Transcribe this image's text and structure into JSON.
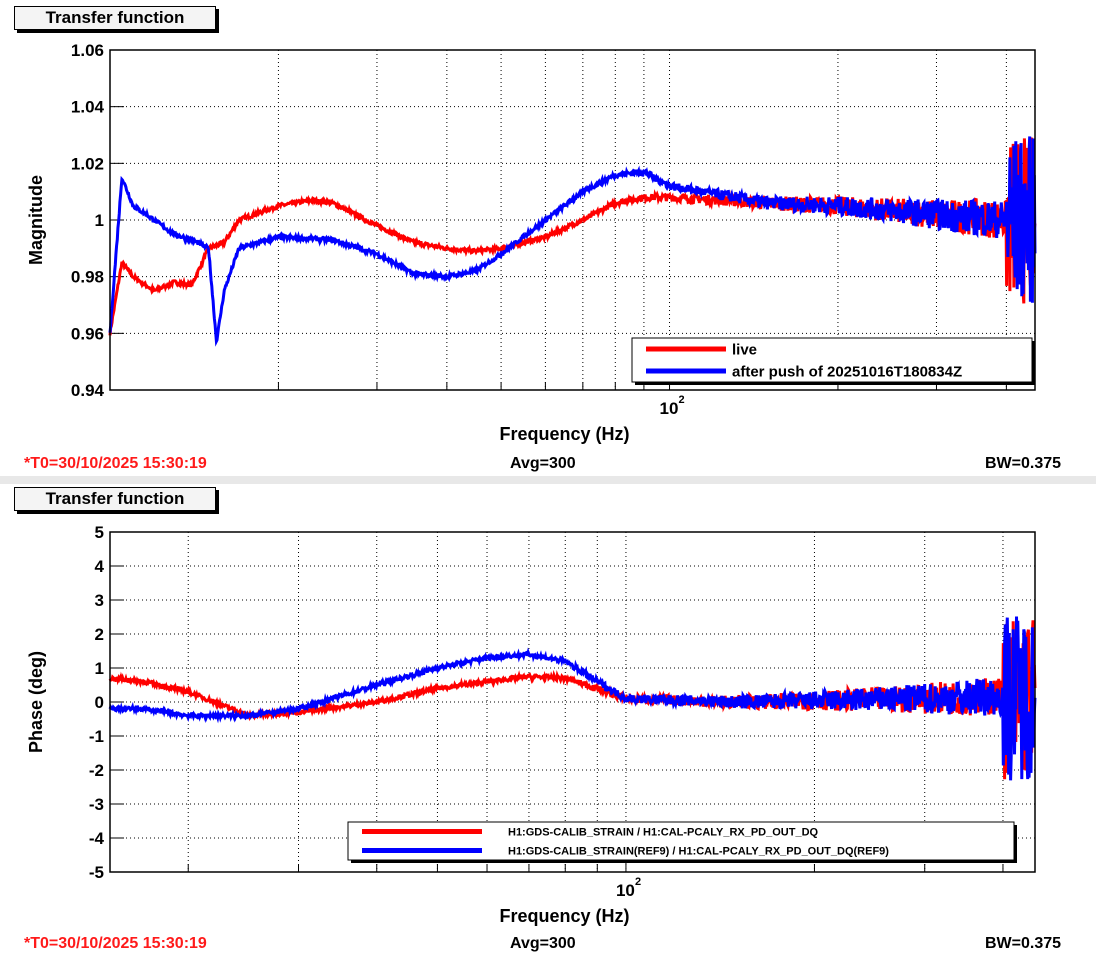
{
  "panels": [
    {
      "title": "Transfer function",
      "t0": "*T0=30/10/2025 15:30:19",
      "avg": "Avg=300",
      "bw": "BW=0.375"
    },
    {
      "title": "Transfer function",
      "t0": "*T0=30/10/2025 15:30:19",
      "avg": "Avg=300",
      "bw": "BW=0.375"
    }
  ],
  "chart_data": [
    {
      "type": "line",
      "title": "Transfer function",
      "xlabel": "Frequency (Hz)",
      "ylabel": "Magnitude",
      "xscale": "log",
      "xlim": [
        10,
        450
      ],
      "ylim": [
        0.94,
        1.06
      ],
      "yticks": [
        "0.94",
        "0.96",
        "0.98",
        "1",
        "1.02",
        "1.04",
        "1.06"
      ],
      "yvals": [
        0.94,
        0.96,
        0.98,
        1,
        1.02,
        1.04,
        1.06
      ],
      "xtick_label": "10",
      "xtick_exp": "2",
      "grid": true,
      "legend": "bottom-right",
      "series": [
        {
          "name": "live",
          "color": "#ff0000",
          "points": [
            [
              10,
              0.96
            ],
            [
              10.5,
              0.985
            ],
            [
              11,
              0.98
            ],
            [
              12,
              0.975
            ],
            [
              13,
              0.978
            ],
            [
              14,
              0.977
            ],
            [
              15,
              0.99
            ],
            [
              16,
              0.992
            ],
            [
              17,
              1.0
            ],
            [
              20,
              1.005
            ],
            [
              23,
              1.007
            ],
            [
              25,
              1.006
            ],
            [
              30,
              0.998
            ],
            [
              35,
              0.992
            ],
            [
              40,
              0.99
            ],
            [
              45,
              0.989
            ],
            [
              50,
              0.99
            ],
            [
              60,
              0.994
            ],
            [
              70,
              1.0
            ],
            [
              80,
              1.006
            ],
            [
              90,
              1.008
            ],
            [
              100,
              1.008
            ],
            [
              150,
              1.006
            ],
            [
              200,
              1.005
            ],
            [
              300,
              1.002
            ],
            [
              400,
              1.0
            ],
            [
              450,
              1.0
            ]
          ]
        },
        {
          "name": "after push of 20251016T180834Z",
          "color": "#0000ff",
          "points": [
            [
              10,
              0.96
            ],
            [
              10.5,
              1.015
            ],
            [
              11,
              1.005
            ],
            [
              12,
              1.0
            ],
            [
              13,
              0.995
            ],
            [
              14,
              0.993
            ],
            [
              15,
              0.99
            ],
            [
              15.5,
              0.957
            ],
            [
              16,
              0.975
            ],
            [
              17,
              0.99
            ],
            [
              20,
              0.994
            ],
            [
              25,
              0.993
            ],
            [
              30,
              0.988
            ],
            [
              35,
              0.981
            ],
            [
              40,
              0.98
            ],
            [
              45,
              0.982
            ],
            [
              50,
              0.988
            ],
            [
              60,
              1.0
            ],
            [
              70,
              1.01
            ],
            [
              80,
              1.016
            ],
            [
              90,
              1.017
            ],
            [
              100,
              1.012
            ],
            [
              150,
              1.006
            ],
            [
              200,
              1.005
            ],
            [
              300,
              1.002
            ],
            [
              400,
              1.0
            ],
            [
              450,
              1.0
            ]
          ]
        }
      ]
    },
    {
      "type": "line",
      "title": "Transfer function",
      "xlabel": "Frequency (Hz)",
      "ylabel": "Phase (deg)",
      "xscale": "log",
      "xlim": [
        15,
        450
      ],
      "ylim": [
        -5,
        5
      ],
      "yticks": [
        "-5",
        "-4",
        "-3",
        "-2",
        "-1",
        "0",
        "1",
        "2",
        "3",
        "4",
        "5"
      ],
      "yvals": [
        -5,
        -4,
        -3,
        -2,
        -1,
        0,
        1,
        2,
        3,
        4,
        5
      ],
      "xtick_label": "10",
      "xtick_exp": "2",
      "grid": true,
      "legend": "bottom-right",
      "series": [
        {
          "name": "H1:GDS-CALIB_STRAIN / H1:CAL-PCALY_RX_PD_OUT_DQ",
          "color": "#ff0000",
          "points": [
            [
              15,
              0.7
            ],
            [
              17,
              0.6
            ],
            [
              20,
              0.3
            ],
            [
              25,
              -0.4
            ],
            [
              30,
              -0.3
            ],
            [
              40,
              0.0
            ],
            [
              50,
              0.4
            ],
            [
              60,
              0.6
            ],
            [
              70,
              0.75
            ],
            [
              80,
              0.7
            ],
            [
              90,
              0.4
            ],
            [
              100,
              0.1
            ],
            [
              150,
              0.0
            ],
            [
              300,
              0.1
            ],
            [
              450,
              0.2
            ]
          ]
        },
        {
          "name": "H1:GDS-CALIB_STRAIN(REF9) / H1:CAL-PCALY_RX_PD_OUT_DQ(REF9)",
          "color": "#0000ff",
          "points": [
            [
              15,
              -0.2
            ],
            [
              17,
              -0.2
            ],
            [
              20,
              -0.4
            ],
            [
              25,
              -0.4
            ],
            [
              30,
              -0.2
            ],
            [
              40,
              0.5
            ],
            [
              50,
              1.0
            ],
            [
              60,
              1.3
            ],
            [
              70,
              1.4
            ],
            [
              80,
              1.2
            ],
            [
              90,
              0.6
            ],
            [
              100,
              0.1
            ],
            [
              150,
              0.0
            ],
            [
              300,
              0.1
            ],
            [
              450,
              0.2
            ]
          ]
        }
      ]
    }
  ]
}
